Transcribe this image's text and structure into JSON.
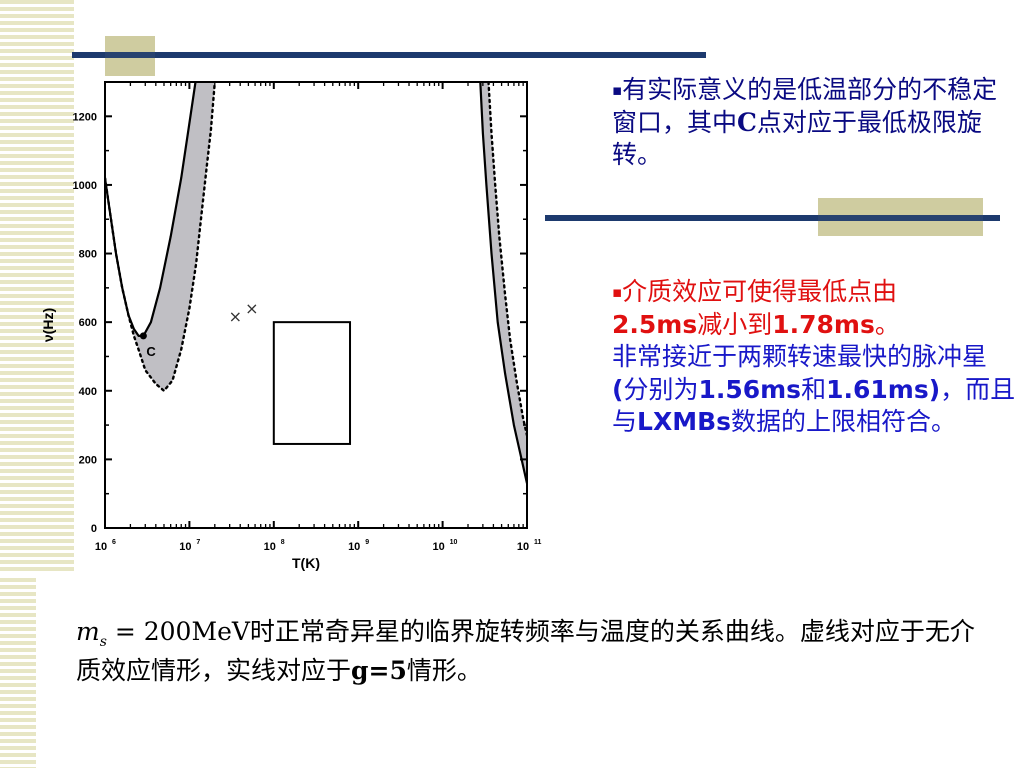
{
  "slide": {
    "bullet_symbol": "▪",
    "note1": {
      "text": "有实际意义的是低温部分的不稳定窗口，其中",
      "highlight": "C",
      "text_after": "点对应于最低极限旋转。"
    },
    "note2": {
      "line1": "介质效应可使得最低点由",
      "v1": "2.5ms",
      "mid": "减小到",
      "v2": "1.78ms",
      "end": "。",
      "p2a": "非常接近于两颗转速最快的脉冲星",
      "p2b": "(",
      "p2c": "分别为",
      "v3": "1.56ms",
      "p2d": "和",
      "v4": "1.61ms)",
      "p2e": "，而且与",
      "v5": "LXMBs",
      "p2f": "数据的上限相符合。"
    },
    "caption": {
      "math_var": "m",
      "math_sub": "s",
      "math_rest": " = 200MeV",
      "text1": "时正常奇异星的临界旋转频率与温度的关系曲线。虚线对应于无介质效应情形，实线对应于",
      "g": "g=5",
      "text2": "情形。"
    },
    "colors": {
      "rule": "#1e3a6e",
      "accent_box": "#cfcca0",
      "stripe": "#e7e6c4",
      "shade": "#c0bfc4",
      "red": "#e01010",
      "blue": "#1818c8"
    }
  },
  "chart_data": {
    "type": "line",
    "title": "",
    "xlabel": "T(K)",
    "ylabel": "ν(Hz)",
    "xscale": "log",
    "xlim": [
      1000000,
      100000000000
    ],
    "ylim": [
      0,
      1300
    ],
    "x_ticks": [
      {
        "value": 1000000,
        "label": "10",
        "exp": "6"
      },
      {
        "value": 10000000,
        "label": "10",
        "exp": "7"
      },
      {
        "value": 100000000,
        "label": "10",
        "exp": "8"
      },
      {
        "value": 1000000000,
        "label": "10",
        "exp": "9"
      },
      {
        "value": 10000000000,
        "label": "10",
        "exp": "10"
      },
      {
        "value": 100000000000,
        "label": "10",
        "exp": "11"
      }
    ],
    "y_ticks": [
      0,
      200,
      400,
      600,
      800,
      1000,
      1200
    ],
    "series": [
      {
        "style": "solid",
        "segments": [
          [
            [
              1000000,
              1020
            ],
            [
              1350000,
              800
            ],
            [
              1600000,
              700
            ],
            [
              1900000,
              620
            ],
            [
              2200000,
              580
            ],
            [
              2500000,
              560
            ],
            [
              2850000,
              560
            ],
            [
              3500000,
              600
            ],
            [
              4500000,
              700
            ],
            [
              6000000,
              850
            ],
            [
              8000000,
              1020
            ],
            [
              10000000,
              1180
            ],
            [
              11800000,
              1300
            ]
          ],
          [
            [
              28000000000,
              1300
            ],
            [
              30000000000,
              1150
            ],
            [
              33000000000,
              1000
            ],
            [
              38000000000,
              800
            ],
            [
              45000000000,
              600
            ],
            [
              55000000000,
              450
            ],
            [
              70000000000,
              300
            ],
            [
              100000000000,
              130
            ]
          ]
        ]
      },
      {
        "style": "dotted",
        "segments": [
          [
            [
              1000000,
              1020
            ],
            [
              1350000,
              800
            ],
            [
              1600000,
              700
            ],
            [
              1900000,
              620
            ],
            [
              2200000,
              560
            ],
            [
              2500000,
              520
            ],
            [
              3000000,
              460
            ],
            [
              4000000,
              420
            ],
            [
              5000000,
              400
            ],
            [
              6300000,
              430
            ],
            [
              8000000,
              520
            ],
            [
              10000000,
              640
            ],
            [
              12000000,
              770
            ],
            [
              14000000,
              920
            ],
            [
              16000000,
              1050
            ],
            [
              18000000,
              1160
            ],
            [
              20000000,
              1300
            ]
          ],
          [
            [
              35000000000,
              1300
            ],
            [
              38000000000,
              1150
            ],
            [
              42000000000,
              1000
            ],
            [
              47000000000,
              850
            ],
            [
              55000000000,
              680
            ],
            [
              63000000000,
              550
            ],
            [
              75000000000,
              430
            ],
            [
              90000000000,
              320
            ],
            [
              100000000000,
              270
            ]
          ]
        ]
      }
    ],
    "shaded_regions": [
      {
        "between": "solid/dotted",
        "side": "left"
      },
      {
        "between": "solid/dotted",
        "side": "right"
      }
    ],
    "point_label": {
      "label": "C",
      "x": 2850000,
      "y": 560
    },
    "markers": [
      {
        "symbol": "×",
        "x": 35000000,
        "y": 615
      },
      {
        "symbol": "×",
        "x": 55000000,
        "y": 638
      }
    ],
    "rectangle": {
      "x0": 100000000,
      "x1": 800000000,
      "y0": 245,
      "y1": 600
    }
  }
}
